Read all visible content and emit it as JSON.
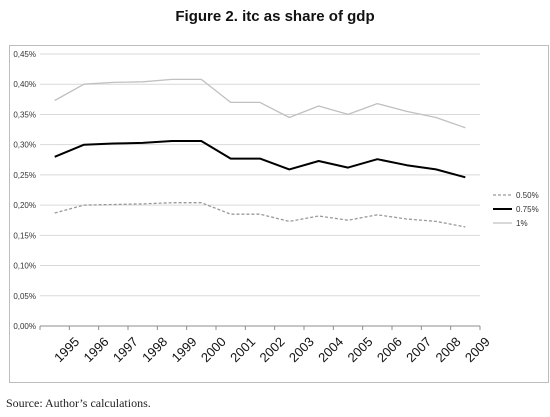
{
  "figure": {
    "title": "Figure 2. itc as share of gdp",
    "source": "Source: Author’s calculations."
  },
  "chart_data": {
    "type": "line",
    "title": "Figure 2. itc as share of gdp",
    "categories": [
      "1995",
      "1996",
      "1997",
      "1998",
      "1999",
      "2000",
      "2001",
      "2002",
      "2003",
      "2004",
      "2005",
      "2006",
      "2007",
      "2008",
      "2009"
    ],
    "y_ticks": [
      "0,00%",
      "0,05%",
      "0,10%",
      "0,15%",
      "0,20%",
      "0,25%",
      "0,30%",
      "0,35%",
      "0,40%",
      "0,45%"
    ],
    "ylim": [
      0,
      0.45
    ],
    "grid": "horizontal",
    "legend_position": "right",
    "series": [
      {
        "name": "0.50%",
        "color": "#999999",
        "style": "dashed",
        "values": [
          0.187,
          0.2,
          0.201,
          0.202,
          0.204,
          0.204,
          0.185,
          0.185,
          0.173,
          0.182,
          0.175,
          0.184,
          0.177,
          0.173,
          0.164
        ]
      },
      {
        "name": "0.75%",
        "color": "#000000",
        "style": "solid",
        "values": [
          0.28,
          0.3,
          0.302,
          0.303,
          0.306,
          0.306,
          0.277,
          0.277,
          0.259,
          0.273,
          0.262,
          0.276,
          0.266,
          0.259,
          0.246
        ]
      },
      {
        "name": "1%",
        "color": "#c0c0c0",
        "style": "solid",
        "values": [
          0.373,
          0.4,
          0.403,
          0.404,
          0.408,
          0.408,
          0.37,
          0.37,
          0.345,
          0.364,
          0.35,
          0.368,
          0.355,
          0.345,
          0.328
        ]
      }
    ]
  }
}
